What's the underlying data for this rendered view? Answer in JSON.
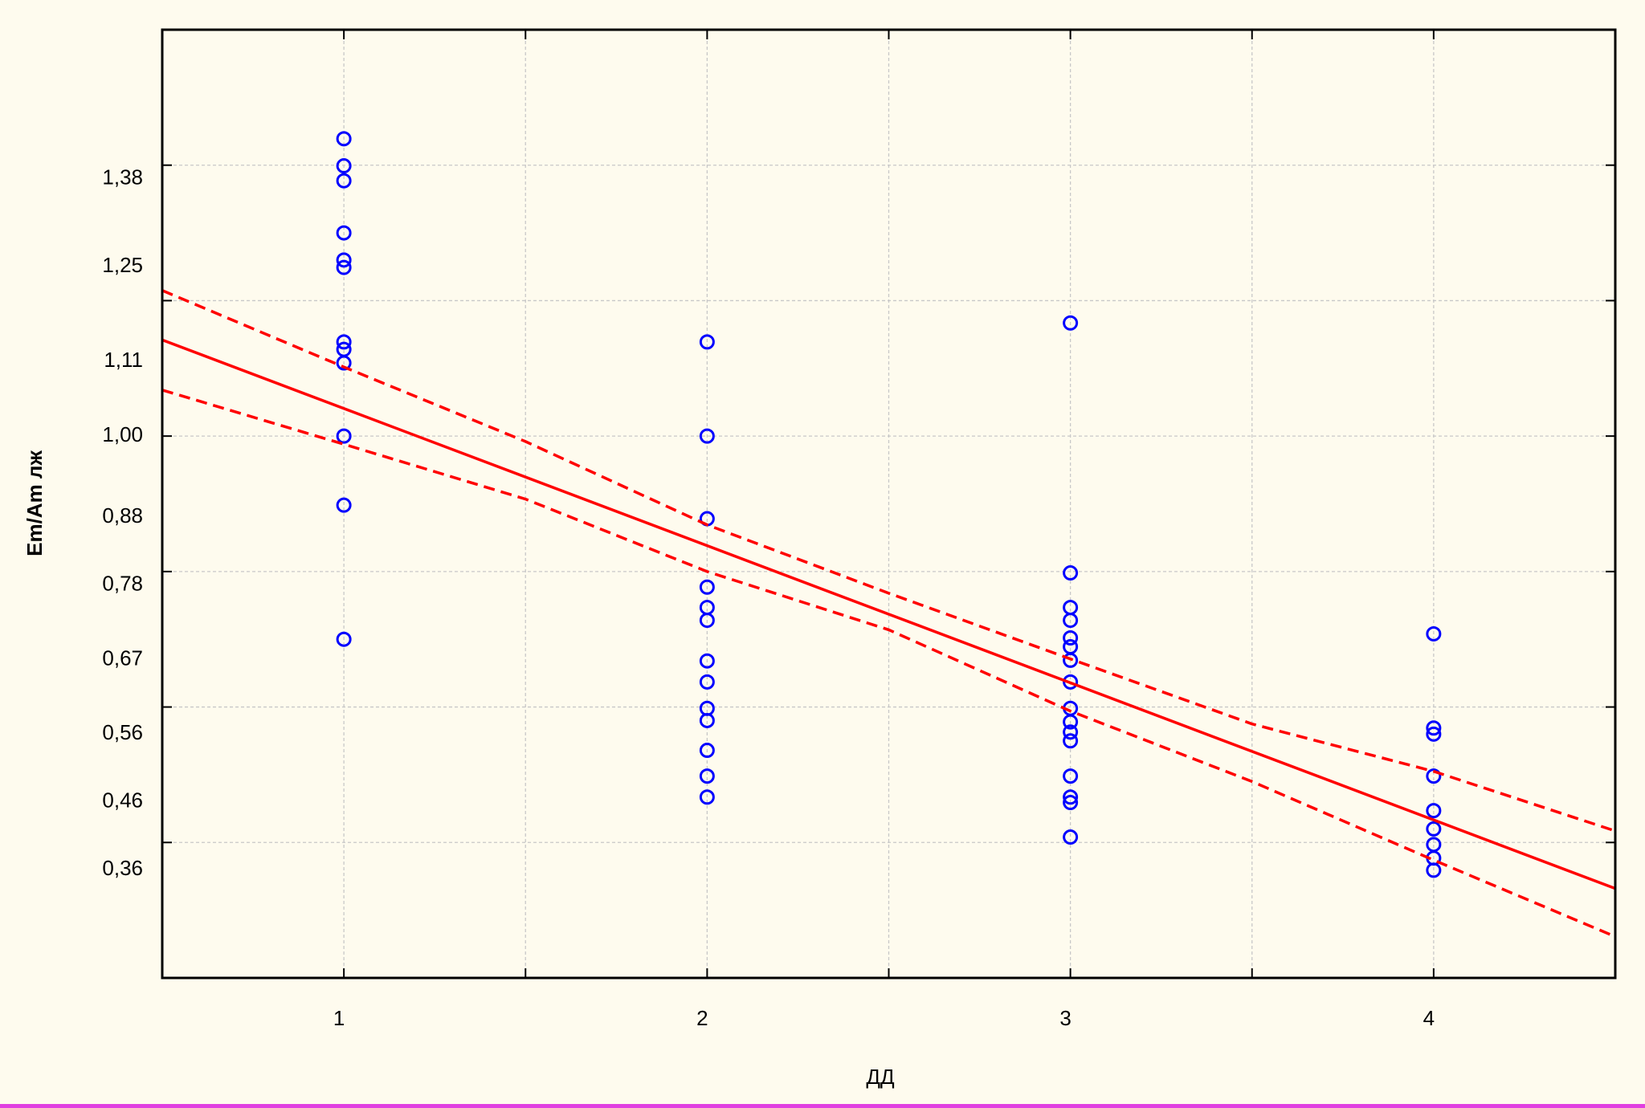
{
  "chart_data": {
    "type": "scatter",
    "xlabel": "ДД",
    "ylabel": "Em/Am лж",
    "xlim": [
      0.5,
      4.5
    ],
    "ylim": [
      0.2,
      1.6
    ],
    "xticks": [
      1,
      2,
      3,
      4
    ],
    "xgrid": [
      1,
      1.5,
      2,
      2.5,
      3,
      3.5,
      4
    ],
    "ygrid": [
      0.4,
      0.6,
      0.8,
      1.0,
      1.2,
      1.4
    ],
    "yticks": [
      {
        "value": 1.38,
        "label": "1,38"
      },
      {
        "value": 1.25,
        "label": "1,25"
      },
      {
        "value": 1.11,
        "label": "1,11"
      },
      {
        "value": 1.0,
        "label": "1,00"
      },
      {
        "value": 0.88,
        "label": "0,88"
      },
      {
        "value": 0.78,
        "label": "0,78"
      },
      {
        "value": 0.67,
        "label": "0,67"
      },
      {
        "value": 0.56,
        "label": "0,56"
      },
      {
        "value": 0.46,
        "label": "0,46"
      },
      {
        "value": 0.36,
        "label": "0,36"
      }
    ],
    "grid": true,
    "series": [
      {
        "kind": "points",
        "color": "#0000ff",
        "x": [
          1,
          1,
          1,
          1,
          1,
          1,
          1,
          1,
          1,
          1,
          1,
          1,
          2,
          2,
          2,
          2,
          2,
          2,
          2,
          2,
          2,
          2,
          2,
          2,
          2,
          3,
          3,
          3,
          3,
          3,
          3,
          3,
          3,
          3,
          3,
          3,
          3,
          3,
          3,
          3,
          3,
          4,
          4,
          4,
          4,
          4,
          4,
          4,
          4,
          4
        ],
        "values": [
          1.439,
          1.399,
          1.377,
          1.3,
          1.26,
          1.249,
          1.139,
          1.128,
          1.108,
          1.0,
          0.898,
          0.7,
          1.139,
          1.0,
          0.878,
          0.777,
          0.747,
          0.728,
          0.668,
          0.637,
          0.598,
          0.58,
          0.536,
          0.498,
          0.467,
          1.167,
          0.798,
          0.747,
          0.728,
          0.702,
          0.689,
          0.669,
          0.637,
          0.598,
          0.578,
          0.563,
          0.55,
          0.498,
          0.467,
          0.459,
          0.408,
          0.708,
          0.569,
          0.56,
          0.498,
          0.447,
          0.42,
          0.397,
          0.377,
          0.359
        ]
      },
      {
        "kind": "line",
        "color": "#ff0000",
        "dashed": false,
        "x": [
          0.5,
          4.5
        ],
        "values": [
          1.142,
          0.332
        ]
      },
      {
        "kind": "line",
        "color": "#ff0000",
        "dashed": true,
        "x": [
          0.5,
          1,
          1.5,
          2,
          2.5,
          3,
          3.5,
          4,
          4.5
        ],
        "values": [
          1.215,
          1.102,
          0.992,
          0.869,
          0.768,
          0.671,
          0.575,
          0.505,
          0.417
        ]
      },
      {
        "kind": "line",
        "color": "#ff0000",
        "dashed": true,
        "x": [
          0.5,
          1,
          1.5,
          2,
          2.5,
          3,
          3.5,
          4,
          4.5
        ],
        "values": [
          1.068,
          0.988,
          0.907,
          0.8,
          0.714,
          0.594,
          0.49,
          0.374,
          0.261
        ]
      }
    ]
  }
}
